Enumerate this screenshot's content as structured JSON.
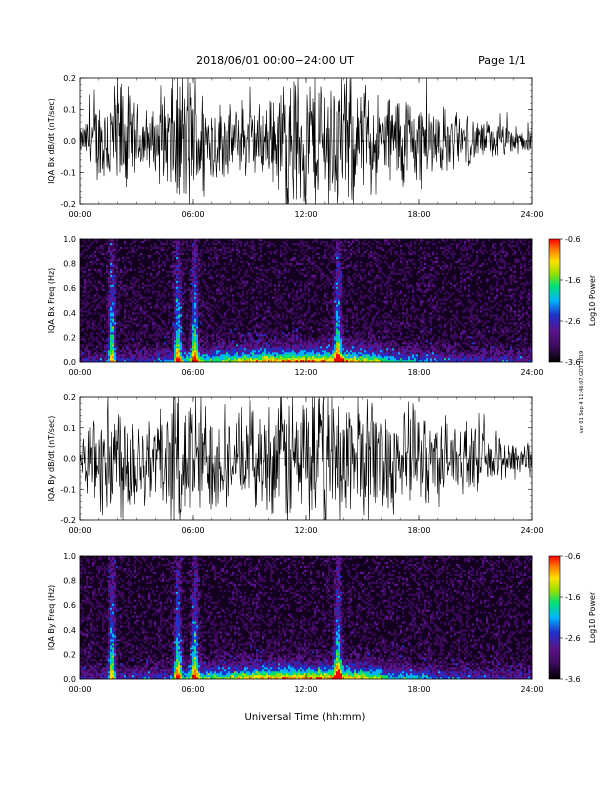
{
  "header": {
    "title": "2018/06/01   00:00−24:00 UT",
    "page": "Page 1/1"
  },
  "footer": {
    "xlabel": "Universal Time (hh:mm)"
  },
  "side_note": "ver 01 Sep 4 11:46:07 GDT 2019",
  "colors": {
    "waveform": "#000000",
    "colormap": [
      "#000000",
      "#3a0a58",
      "#5a148c",
      "#2030c8",
      "#00b4ff",
      "#00e070",
      "#9ae000",
      "#ffe000",
      "#ff8000",
      "#ff0000"
    ]
  },
  "chart_data": [
    {
      "type": "line",
      "panel": "waveform",
      "ylabel": "IQA Bx dB/dt (nT/sec)",
      "ylim": [
        -0.2,
        0.2
      ],
      "yticks": [
        "-0.2",
        "-0.1",
        "0.0",
        "0.1",
        "0.2"
      ],
      "xlim": [
        "00:00",
        "24:00"
      ],
      "xticks": [
        "00:00",
        "06:00",
        "12:00",
        "18:00",
        "24:00"
      ],
      "series": [
        {
          "x": [
            0,
            1,
            2,
            3,
            4,
            5,
            5.5,
            6,
            7,
            8,
            9,
            10,
            11,
            12,
            13,
            14,
            15,
            16,
            17,
            18,
            19,
            20,
            21,
            22,
            23,
            24
          ],
          "amplitude": [
            0.03,
            0.12,
            0.2,
            0.1,
            0.08,
            0.2,
            0.2,
            0.2,
            0.12,
            0.09,
            0.1,
            0.1,
            0.2,
            0.2,
            0.2,
            0.2,
            0.15,
            0.12,
            0.14,
            0.12,
            0.1,
            0.07,
            0.06,
            0.05,
            0.04,
            0.03
          ]
        }
      ]
    },
    {
      "type": "heatmap",
      "panel": "spectrogram",
      "ylabel": "IQA Bx Freq (Hz)",
      "ylim": [
        0.0,
        1.0
      ],
      "yticks": [
        "0.0",
        "0.2",
        "0.4",
        "0.6",
        "0.8",
        "1.0"
      ],
      "xlim": [
        "00:00",
        "24:00"
      ],
      "xticks": [
        "00:00",
        "06:00",
        "12:00",
        "18:00",
        "24:00"
      ],
      "colorbar": {
        "label": "Log10 Power",
        "range": [
          -3.6,
          -0.6
        ],
        "ticks": [
          "-0.6",
          "-1.6",
          "-2.6",
          "-3.6"
        ]
      },
      "bright_bands_hours": [
        1.7,
        5.2,
        6.1,
        13.7
      ]
    },
    {
      "type": "line",
      "panel": "waveform",
      "ylabel": "IQA By dB/dt (nT/sec)",
      "ylim": [
        -0.2,
        0.2
      ],
      "yticks": [
        "-0.2",
        "-0.1",
        "0.0",
        "0.1",
        "0.2"
      ],
      "xlim": [
        "00:00",
        "24:00"
      ],
      "xticks": [
        "00:00",
        "06:00",
        "12:00",
        "18:00",
        "24:00"
      ],
      "series": [
        {
          "x": [
            0,
            1,
            2,
            3,
            4,
            5,
            5.5,
            6,
            7,
            8,
            9,
            10,
            11,
            12,
            13,
            14,
            15,
            16,
            17,
            18,
            19,
            20,
            21,
            22,
            23,
            24
          ],
          "amplitude": [
            0.06,
            0.15,
            0.2,
            0.15,
            0.12,
            0.2,
            0.2,
            0.2,
            0.15,
            0.12,
            0.12,
            0.15,
            0.2,
            0.2,
            0.2,
            0.2,
            0.18,
            0.15,
            0.15,
            0.14,
            0.12,
            0.1,
            0.08,
            0.07,
            0.06,
            0.05
          ]
        }
      ]
    },
    {
      "type": "heatmap",
      "panel": "spectrogram",
      "ylabel": "IQA By Freq (Hz)",
      "ylim": [
        0.0,
        1.0
      ],
      "yticks": [
        "0.0",
        "0.2",
        "0.4",
        "0.6",
        "0.8",
        "1.0"
      ],
      "xlim": [
        "00:00",
        "24:00"
      ],
      "xticks": [
        "00:00",
        "06:00",
        "12:00",
        "18:00",
        "24:00"
      ],
      "colorbar": {
        "label": "Log10 Power",
        "range": [
          -3.6,
          -0.6
        ],
        "ticks": [
          "-0.6",
          "-1.6",
          "-2.6",
          "-3.6"
        ]
      },
      "bright_bands_hours": [
        1.7,
        5.2,
        6.1,
        13.7
      ]
    }
  ]
}
